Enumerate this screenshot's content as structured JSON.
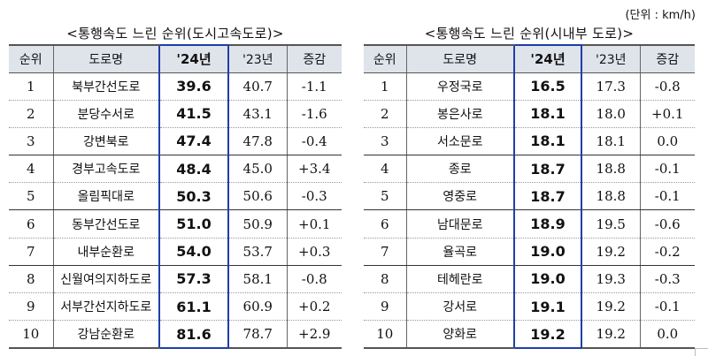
{
  "unit_label": "(단위 : km/h)",
  "headers": [
    "순위",
    "도로명",
    "'24년",
    "'23년",
    "증감"
  ],
  "urban_expressway": {
    "title": "<통행속도 느린 순위(도시고속도로)>",
    "rows": [
      {
        "rank": "1",
        "road": "북부간선도로",
        "y24": "39.6",
        "y23": "40.7",
        "change": "-1.1"
      },
      {
        "rank": "2",
        "road": "분당수서로",
        "y24": "41.5",
        "y23": "43.1",
        "change": "-1.6"
      },
      {
        "rank": "3",
        "road": "강변북로",
        "y24": "47.4",
        "y23": "47.8",
        "change": "-0.4"
      },
      {
        "rank": "4",
        "road": "경부고속도로",
        "y24": "48.4",
        "y23": "45.0",
        "change": "+3.4"
      },
      {
        "rank": "5",
        "road": "올림픽대로",
        "y24": "50.3",
        "y23": "50.6",
        "change": "-0.3"
      },
      {
        "rank": "6",
        "road": "동부간선도로",
        "y24": "51.0",
        "y23": "50.9",
        "change": "+0.1"
      },
      {
        "rank": "7",
        "road": "내부순환로",
        "y24": "54.0",
        "y23": "53.7",
        "change": "+0.3"
      },
      {
        "rank": "8",
        "road": "신월여의지하도로",
        "y24": "57.3",
        "y23": "58.1",
        "change": "-0.8"
      },
      {
        "rank": "9",
        "road": "서부간선지하도로",
        "y24": "61.1",
        "y23": "60.9",
        "change": "+0.2"
      },
      {
        "rank": "10",
        "road": "강남순환로",
        "y24": "81.6",
        "y23": "78.7",
        "change": "+2.9"
      }
    ]
  },
  "downtown_road": {
    "title": "<통행속도 느린 순위(시내부 도로)>",
    "rows": [
      {
        "rank": "1",
        "road": "우정국로",
        "y24": "16.5",
        "y23": "17.3",
        "change": "-0.8"
      },
      {
        "rank": "2",
        "road": "봉은사로",
        "y24": "18.1",
        "y23": "18.0",
        "change": "+0.1"
      },
      {
        "rank": "3",
        "road": "서소문로",
        "y24": "18.1",
        "y23": "18.1",
        "change": "0.0"
      },
      {
        "rank": "4",
        "road": "종로",
        "y24": "18.7",
        "y23": "18.8",
        "change": "-0.1"
      },
      {
        "rank": "5",
        "road": "영중로",
        "y24": "18.7",
        "y23": "18.8",
        "change": "-0.1"
      },
      {
        "rank": "6",
        "road": "남대문로",
        "y24": "18.9",
        "y23": "19.5",
        "change": "-0.6"
      },
      {
        "rank": "7",
        "road": "율곡로",
        "y24": "19.0",
        "y23": "19.2",
        "change": "-0.2"
      },
      {
        "rank": "8",
        "road": "테헤란로",
        "y24": "19.0",
        "y23": "19.3",
        "change": "-0.3"
      },
      {
        "rank": "9",
        "road": "강서로",
        "y24": "19.1",
        "y23": "19.2",
        "change": "-0.1"
      },
      {
        "rank": "10",
        "road": "양화로",
        "y24": "19.2",
        "y23": "19.2",
        "change": "0.0"
      }
    ]
  }
}
